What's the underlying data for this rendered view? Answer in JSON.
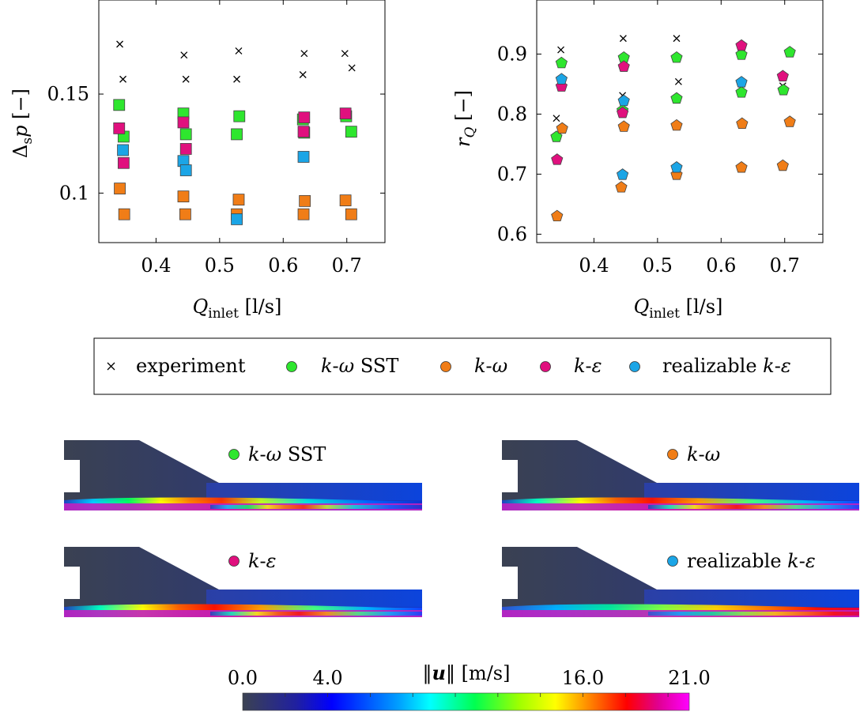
{
  "chart_data": [
    {
      "type": "scatter",
      "id": "dp",
      "ylabel_main": "Δ",
      "ylabel_sub": "s",
      "ylabel_var": "p",
      "ylabel_unit": " [−]",
      "xlabel_main": "Q",
      "xlabel_sub": "inlet",
      "xlabel_unit": " [l/s]",
      "xlim": [
        0.31,
        0.76
      ],
      "ylim": [
        0.075,
        0.1975
      ],
      "xticks": [
        0.4,
        0.5,
        0.6,
        0.7
      ],
      "xticklabels": [
        "0.4",
        "0.5",
        "0.6",
        "0.7"
      ],
      "yticks": [
        0.1,
        0.15
      ],
      "yticklabels": [
        "0.1",
        "0.15"
      ],
      "marker": "square",
      "series": [
        {
          "name": "experiment",
          "points": [
            [
              0.343,
              0.1752
            ],
            [
              0.348,
              0.1575
            ],
            [
              0.444,
              0.1697
            ],
            [
              0.447,
              0.1575
            ],
            [
              0.53,
              0.1718
            ],
            [
              0.527,
              0.1575
            ],
            [
              0.633,
              0.1705
            ],
            [
              0.631,
              0.1598
            ],
            [
              0.697,
              0.1705
            ],
            [
              0.708,
              0.1632
            ]
          ]
        },
        {
          "name": "k-ω SST",
          "points": [
            [
              0.342,
              0.1445
            ],
            [
              0.349,
              0.1285
            ],
            [
              0.443,
              0.1402
            ],
            [
              0.447,
              0.1297
            ],
            [
              0.531,
              0.1388
            ],
            [
              0.527,
              0.1297
            ],
            [
              0.633,
              0.1305
            ],
            [
              0.631,
              0.1372
            ],
            [
              0.699,
              0.1388
            ],
            [
              0.707,
              0.131
            ]
          ]
        },
        {
          "name": "k-ω",
          "points": [
            [
              0.343,
              0.1023
            ],
            [
              0.35,
              0.0893
            ],
            [
              0.443,
              0.0983
            ],
            [
              0.446,
              0.0893
            ],
            [
              0.53,
              0.0967
            ],
            [
              0.527,
              0.0893
            ],
            [
              0.634,
              0.096
            ],
            [
              0.632,
              0.0893
            ],
            [
              0.698,
              0.0963
            ],
            [
              0.707,
              0.0893
            ]
          ]
        },
        {
          "name": "k-ε",
          "points": [
            [
              0.342,
              0.1327
            ],
            [
              0.349,
              0.1152
            ],
            [
              0.443,
              0.1357
            ],
            [
              0.447,
              0.1223
            ],
            [
              0.633,
              0.1382
            ],
            [
              0.632,
              0.131
            ],
            [
              0.698,
              0.1402
            ]
          ]
        },
        {
          "name": "realizable k-ε",
          "points": [
            [
              0.348,
              0.1217
            ],
            [
              0.443,
              0.1162
            ],
            [
              0.447,
              0.1115
            ],
            [
              0.527,
              0.0868
            ],
            [
              0.632,
              0.1183
            ]
          ]
        }
      ]
    },
    {
      "type": "scatter",
      "id": "rq",
      "ylabel_main": "r",
      "ylabel_sub": "Q",
      "ylabel_unit": " [−]",
      "xlabel_main": "Q",
      "xlabel_sub": "inlet",
      "xlabel_unit": " [l/s]",
      "xlim": [
        0.31,
        0.76
      ],
      "ylim": [
        0.586,
        0.99
      ],
      "xticks": [
        0.4,
        0.5,
        0.6,
        0.7
      ],
      "xticklabels": [
        "0.4",
        "0.5",
        "0.6",
        "0.7"
      ],
      "yticks": [
        0.6,
        0.7,
        0.8,
        0.9
      ],
      "yticklabels": [
        "0.6",
        "0.7",
        "0.8",
        "0.9"
      ],
      "marker": "pentagon",
      "series": [
        {
          "name": "experiment",
          "points": [
            [
              0.348,
              0.907
            ],
            [
              0.341,
              0.793
            ],
            [
              0.446,
              0.926
            ],
            [
              0.445,
              0.831
            ],
            [
              0.53,
              0.926
            ],
            [
              0.533,
              0.854
            ],
            [
              0.632,
              0.851
            ],
            [
              0.697,
              0.847
            ]
          ]
        },
        {
          "name": "k-ω SST",
          "points": [
            [
              0.349,
              0.885
            ],
            [
              0.341,
              0.762
            ],
            [
              0.447,
              0.894
            ],
            [
              0.445,
              0.806
            ],
            [
              0.53,
              0.894
            ],
            [
              0.53,
              0.826
            ],
            [
              0.632,
              0.899
            ],
            [
              0.632,
              0.836
            ],
            [
              0.708,
              0.903
            ],
            [
              0.698,
              0.84
            ]
          ]
        },
        {
          "name": "k-ω",
          "points": [
            [
              0.35,
              0.776
            ],
            [
              0.342,
              0.63
            ],
            [
              0.447,
              0.779
            ],
            [
              0.443,
              0.678
            ],
            [
              0.53,
              0.781
            ],
            [
              0.53,
              0.699
            ],
            [
              0.633,
              0.784
            ],
            [
              0.632,
              0.711
            ],
            [
              0.708,
              0.787
            ],
            [
              0.697,
              0.714
            ]
          ]
        },
        {
          "name": "k-ε",
          "points": [
            [
              0.349,
              0.846
            ],
            [
              0.342,
              0.724
            ],
            [
              0.447,
              0.879
            ],
            [
              0.445,
              0.802
            ],
            [
              0.632,
              0.914
            ],
            [
              0.697,
              0.863
            ]
          ]
        },
        {
          "name": "realizable k-ε",
          "points": [
            [
              0.349,
              0.858
            ],
            [
              0.447,
              0.822
            ],
            [
              0.445,
              0.699
            ],
            [
              0.53,
              0.711
            ],
            [
              0.632,
              0.853
            ]
          ]
        }
      ]
    }
  ],
  "legend": {
    "experiment": "experiment",
    "kwsst_k": "k",
    "kwsst_dash": "-",
    "kwsst_w": "ω",
    "kwsst_sst": " SST",
    "kw_k": "k",
    "kw_dash": "-",
    "kw_w": "ω",
    "ke_k": "k",
    "ke_dash": "-",
    "ke_e": "ε",
    "rke_pre": "realizable ",
    "rke_k": "k",
    "rke_dash": "-",
    "rke_e": "ε"
  },
  "colors": {
    "experiment": "#000000",
    "kw_sst": "#2ee62e",
    "kw": "#f07d17",
    "ke": "#e0107e",
    "rke": "#1ba5e6"
  },
  "panels": [
    {
      "id": "p1",
      "label_k": "k",
      "label_dash": "-",
      "label_sym": "ω",
      "label_suffix": " SST",
      "label_prefix": ""
    },
    {
      "id": "p2",
      "label_k": "k",
      "label_dash": "-",
      "label_sym": "ω",
      "label_suffix": "",
      "label_prefix": ""
    },
    {
      "id": "p3",
      "label_k": "k",
      "label_dash": "-",
      "label_sym": "ε",
      "label_suffix": "",
      "label_prefix": ""
    },
    {
      "id": "p4",
      "label_k": "k",
      "label_dash": "-",
      "label_sym": "ε",
      "label_suffix": "",
      "label_prefix": "realizable "
    }
  ],
  "colorbar": {
    "title_bars": "‖",
    "title_var": "u",
    "title_unit": " [m/s]",
    "ticklabels": [
      "0.0",
      "4.0",
      "16.0",
      "21.0"
    ],
    "range": [
      0.0,
      21.0
    ],
    "label_values": [
      0.0,
      4.0,
      16.0,
      21.0
    ]
  }
}
